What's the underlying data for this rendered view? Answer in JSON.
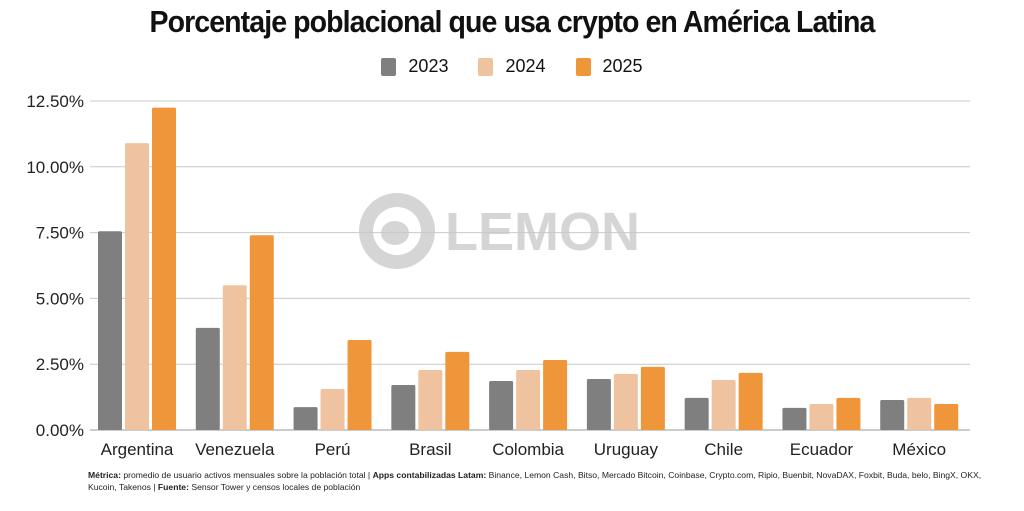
{
  "chart_data": {
    "type": "bar",
    "title": "Porcentaje poblacional que usa crypto en América Latina",
    "categories": [
      "Argentina",
      "Venezuela",
      "Perú",
      "Brasil",
      "Colombia",
      "Uruguay",
      "Chile",
      "Ecuador",
      "México"
    ],
    "series": [
      {
        "name": "2023",
        "color": "#7f7f7f",
        "values": [
          7.55,
          3.88,
          0.87,
          1.71,
          1.86,
          1.94,
          1.22,
          0.84,
          1.14
        ]
      },
      {
        "name": "2024",
        "color": "#f0c3a0",
        "values": [
          10.9,
          5.5,
          1.56,
          2.28,
          2.28,
          2.13,
          1.9,
          0.99,
          1.22
        ]
      },
      {
        "name": "2025",
        "color": "#f0963a",
        "values": [
          12.25,
          7.4,
          3.42,
          2.97,
          2.66,
          2.4,
          2.17,
          1.22,
          0.99
        ]
      }
    ],
    "yticks": [
      "0.00%",
      "2.50%",
      "5.00%",
      "7.50%",
      "10.00%",
      "12.50%"
    ],
    "ytick_values": [
      0,
      2.5,
      5,
      7.5,
      10,
      12.5
    ],
    "ylim": [
      0,
      12.5
    ],
    "grid": true,
    "legend": "top-center",
    "xlabel": "",
    "ylabel": ""
  },
  "watermark": "LEMON",
  "footnote": {
    "metric_label": "Métrica:",
    "metric_text": " promedio de usuario activos mensuales sobre la población total | ",
    "apps_label": "Apps contabilizadas Latam:",
    "apps_text": " Binance, Lemon Cash, Bitso, Mercado Bitcoin, Coinbase, Crypto.com, Ripio, Buenbit, NovaDAX, Foxbit, Buda, belo, BingX, OKX, Kucoin, Takenos | ",
    "source_label": "Fuente:",
    "source_text": " Sensor Tower y censos locales de población"
  }
}
